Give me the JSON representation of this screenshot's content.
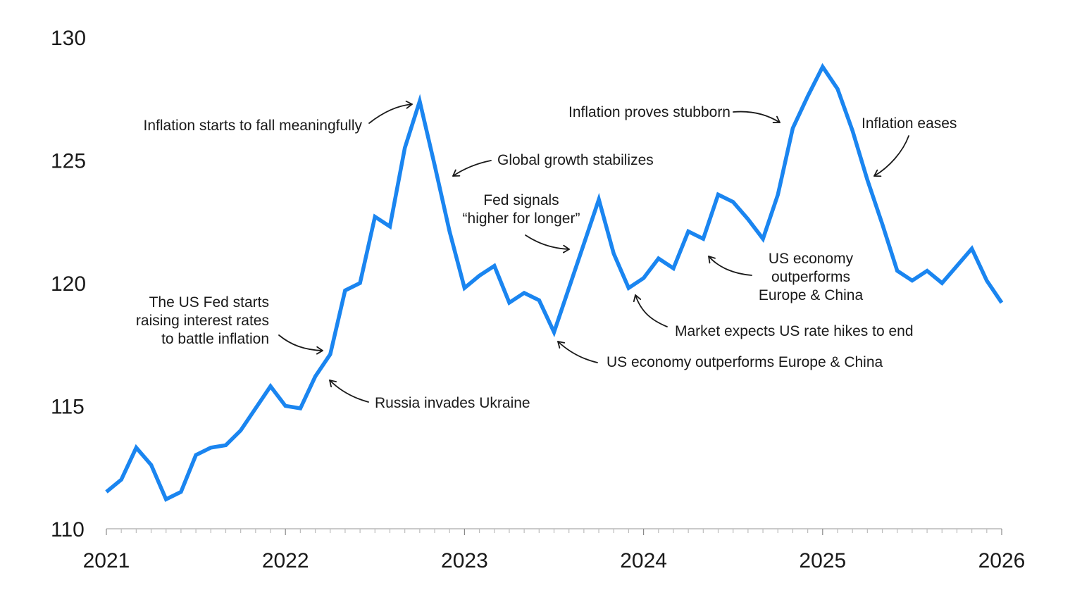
{
  "chart_data": {
    "type": "line",
    "title": "",
    "xlabel": "",
    "ylabel": "",
    "ylim": [
      110,
      130
    ],
    "xlim": [
      "2021-01",
      "2026-01"
    ],
    "yticks": [
      "110",
      "115",
      "120",
      "125",
      "130"
    ],
    "xticks": [
      "2021",
      "2022",
      "2023",
      "2024",
      "2025",
      "2026"
    ],
    "grid": false,
    "legend": "none",
    "line_color": "#1a85f0",
    "series": [
      {
        "x": [
          "2021-01",
          "2021-02",
          "2021-03",
          "2021-04",
          "2021-05",
          "2021-06",
          "2021-07",
          "2021-08",
          "2021-09",
          "2021-10",
          "2021-11",
          "2021-12",
          "2022-01",
          "2022-02",
          "2022-03",
          "2022-04",
          "2022-05",
          "2022-06",
          "2022-07",
          "2022-08",
          "2022-09",
          "2022-10",
          "2022-11",
          "2022-12",
          "2023-01",
          "2023-02",
          "2023-03",
          "2023-04",
          "2023-05",
          "2023-06",
          "2023-07",
          "2023-08",
          "2023-09",
          "2023-10",
          "2023-11",
          "2023-12",
          "2024-01",
          "2024-02",
          "2024-03",
          "2024-04",
          "2024-05",
          "2024-06",
          "2024-07",
          "2024-08",
          "2024-09",
          "2024-10",
          "2024-11",
          "2024-12",
          "2025-01",
          "2025-02",
          "2025-03",
          "2025-04",
          "2025-05",
          "2025-06",
          "2025-07",
          "2025-08",
          "2025-09",
          "2025-10",
          "2025-11",
          "2025-12",
          "2026-01"
        ],
        "values": [
          111.5,
          112.0,
          113.3,
          112.6,
          111.2,
          111.5,
          113.0,
          113.3,
          113.4,
          114.0,
          114.9,
          115.8,
          115.0,
          114.9,
          116.2,
          117.1,
          119.7,
          120.0,
          122.7,
          122.3,
          125.5,
          127.4,
          124.8,
          122.1,
          119.8,
          120.3,
          120.7,
          119.2,
          119.6,
          119.3,
          118.0,
          119.8,
          121.6,
          123.4,
          121.2,
          119.8,
          120.2,
          121.0,
          120.6,
          122.1,
          121.8,
          123.6,
          123.3,
          122.6,
          121.8,
          123.6,
          126.3,
          127.6,
          128.8,
          127.9,
          126.2,
          124.2,
          122.4,
          120.5,
          120.1,
          120.5,
          120.0,
          120.7,
          121.4,
          120.1,
          119.2
        ]
      }
    ],
    "annotations": [
      {
        "lines": [
          "Inflation starts to fall meaningfully"
        ]
      },
      {
        "lines": [
          "Global growth stabilizes"
        ]
      },
      {
        "lines": [
          "Fed signals",
          "“higher for longer”"
        ]
      },
      {
        "lines": [
          "Inflation proves stubborn"
        ]
      },
      {
        "lines": [
          "Inflation eases"
        ]
      },
      {
        "lines": [
          "US economy",
          "outperforms",
          "Europe & China"
        ]
      },
      {
        "lines": [
          "The US Fed starts",
          "raising interest rates",
          "to battle inflation"
        ]
      },
      {
        "lines": [
          "Market expects US rate hikes to end"
        ]
      },
      {
        "lines": [
          "US economy outperforms Europe & China"
        ]
      },
      {
        "lines": [
          "Russia invades Ukraine"
        ]
      }
    ]
  }
}
